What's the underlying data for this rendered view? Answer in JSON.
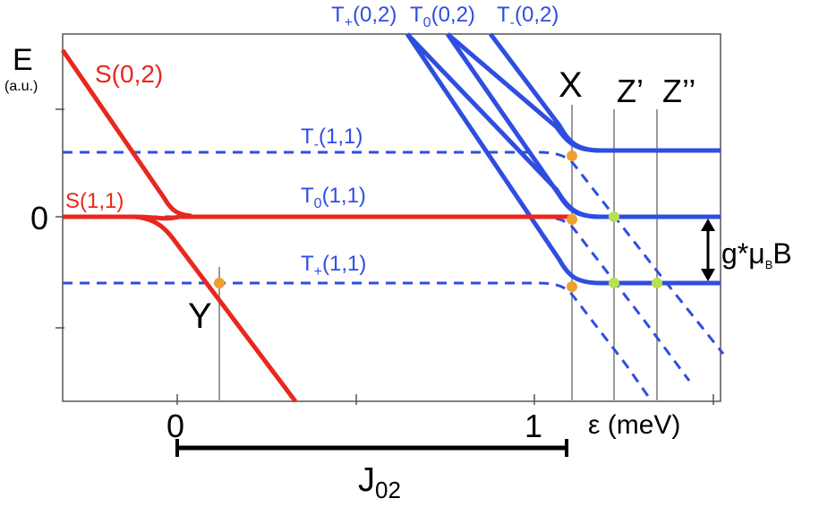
{
  "colors": {
    "singlet": "#e8281e",
    "triplet": "#2f4ee0",
    "axis": "#555555",
    "marker_orange": "#f0a030",
    "marker_green": "#b8e050",
    "guide": "#9a9a9a"
  },
  "axes": {
    "y_title": "E",
    "y_unit": "(a.u.)",
    "y_zero_label": "0",
    "x_tick_0": "0",
    "x_tick_1": "1",
    "x_unit": "ε (meV)"
  },
  "curves": {
    "s02": "S(0,2)",
    "s11": "S(1,1)",
    "tp02_main": "T",
    "tp02_sub": "+",
    "tp02_rest": "(0,2)",
    "t002_main": "T",
    "t002_sub": "0",
    "t002_rest": "(0,2)",
    "tm02_main": "T",
    "tm02_sub": "-",
    "tm02_rest": "(0,2)",
    "tm11_main": "T",
    "tm11_sub": "-",
    "tm11_rest": "(1,1)",
    "t011_main": "T",
    "t011_sub": "0",
    "t011_rest": "(1,1)",
    "tp11_main": "T",
    "tp11_sub": "+",
    "tp11_rest": "(1,1)"
  },
  "points": {
    "x": "X",
    "y": "Y",
    "z1": "Z’",
    "z2": "Z’’"
  },
  "annotations": {
    "zeeman_main": "g*μ",
    "zeeman_sub": "B",
    "zeeman_tail": "B",
    "j_main": "J",
    "j_sub": "02"
  }
}
